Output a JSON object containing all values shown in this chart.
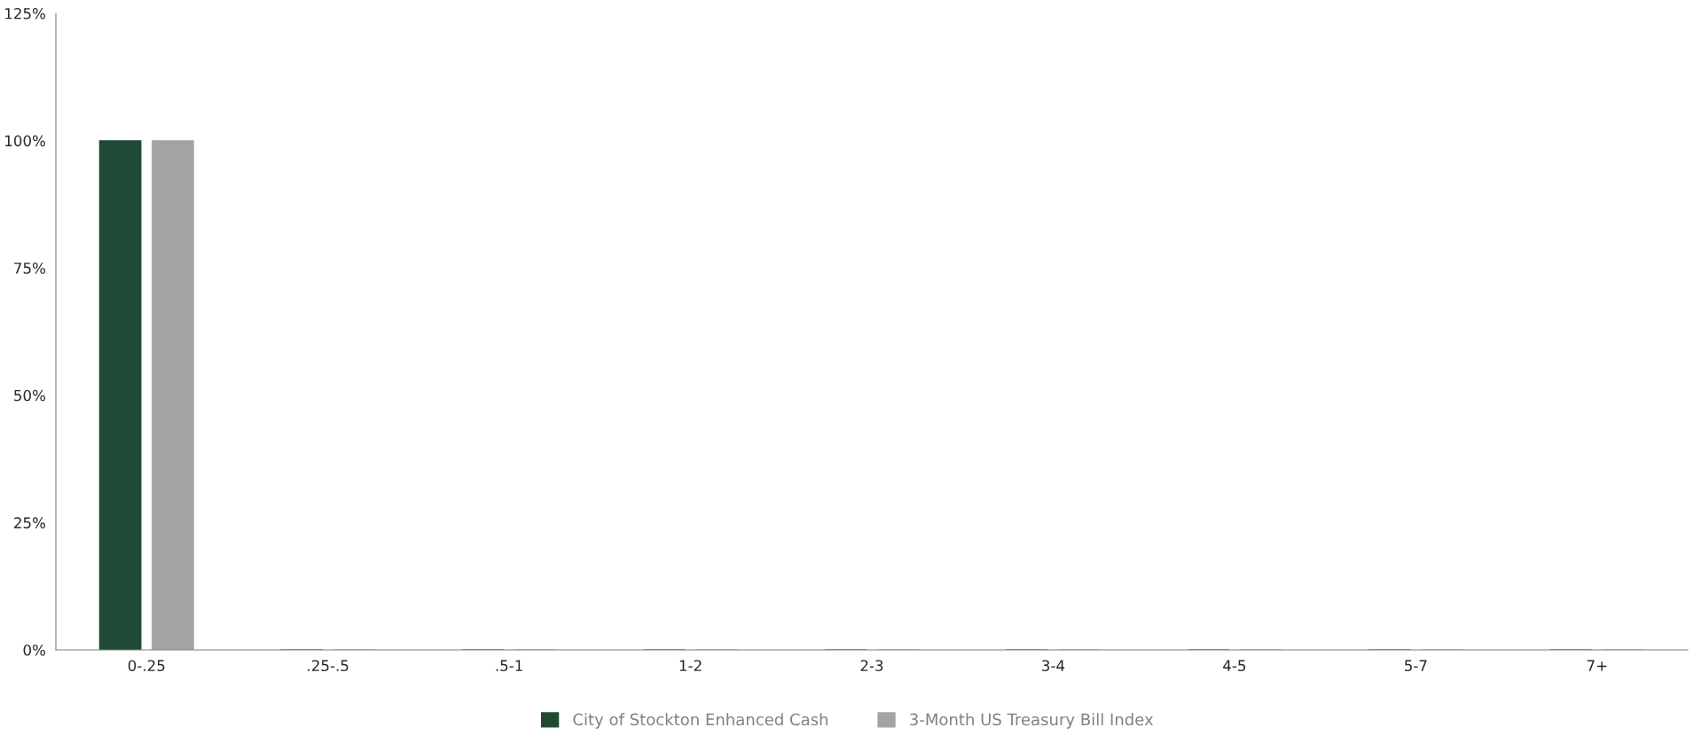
{
  "chart_data": {
    "type": "bar",
    "categories": [
      "0-.25",
      ".25-.5",
      ".5-1",
      "1-2",
      "2-3",
      "3-4",
      "4-5",
      "5-7",
      "7+"
    ],
    "series": [
      {
        "name": "City of Stockton Enhanced Cash",
        "color": "#214a36",
        "values": [
          100,
          0,
          0,
          0,
          0,
          0,
          0,
          0,
          0
        ]
      },
      {
        "name": "3-Month US Treasury Bill Index",
        "color": "#a3a3a3",
        "values": [
          100,
          0,
          0,
          0,
          0,
          0,
          0,
          0,
          0
        ]
      }
    ],
    "ylim": [
      0,
      125
    ],
    "yticks": [
      {
        "value": 0,
        "label": "0%"
      },
      {
        "value": 25,
        "label": "25%"
      },
      {
        "value": 50,
        "label": "50%"
      },
      {
        "value": 75,
        "label": "75%"
      },
      {
        "value": 100,
        "label": "100%"
      },
      {
        "value": 125,
        "label": "125%"
      }
    ],
    "grid": false,
    "legend": "bottom"
  }
}
